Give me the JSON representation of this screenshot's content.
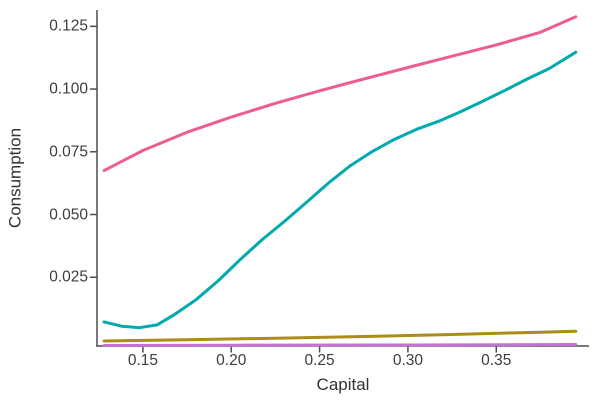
{
  "chart_data": {
    "type": "line",
    "title": "",
    "xlabel": "Capital",
    "ylabel": "Consumption",
    "xlim": [
      0.124,
      0.4025
    ],
    "ylim": [
      -0.0024,
      0.1315
    ],
    "grid": false,
    "legend": "none",
    "background": "#ffffff",
    "axis_color": "#4d4d4d",
    "text_color": "#3d3d3d",
    "xticks": [
      {
        "v": 0.15,
        "label": "0.15"
      },
      {
        "v": 0.2,
        "label": "0.20"
      },
      {
        "v": 0.25,
        "label": "0.25"
      },
      {
        "v": 0.3,
        "label": "0.30"
      },
      {
        "v": 0.35,
        "label": "0.35"
      }
    ],
    "yticks": [
      {
        "v": 0.025,
        "label": "0.025"
      },
      {
        "v": 0.05,
        "label": "0.050"
      },
      {
        "v": 0.075,
        "label": "0.075"
      },
      {
        "v": 0.1,
        "label": "0.100"
      },
      {
        "v": 0.125,
        "label": "0.125"
      }
    ],
    "series": [
      {
        "name": "purple-line",
        "color": "#C371D2",
        "x": [
          0.128,
          0.2,
          0.3,
          0.395
        ],
        "y": [
          -0.0022,
          -0.0021,
          -0.002,
          -0.0018
        ]
      },
      {
        "name": "olive-line",
        "color": "#AC8D18",
        "x": [
          0.128,
          0.175,
          0.225,
          0.275,
          0.325,
          0.375,
          0.395
        ],
        "y": [
          -0.0004,
          0.0001,
          0.0007,
          0.0014,
          0.0022,
          0.0031,
          0.0035
        ]
      },
      {
        "name": "teal-line",
        "color": "#00AAAE",
        "x": [
          0.128,
          0.138,
          0.148,
          0.158,
          0.168,
          0.18,
          0.1925,
          0.205,
          0.2175,
          0.23,
          0.2425,
          0.255,
          0.2675,
          0.28,
          0.2925,
          0.305,
          0.3175,
          0.33,
          0.3425,
          0.355,
          0.3675,
          0.38,
          0.395
        ],
        "y": [
          0.0072,
          0.0055,
          0.0049,
          0.006,
          0.0102,
          0.016,
          0.0235,
          0.032,
          0.04,
          0.0472,
          0.0548,
          0.0625,
          0.0695,
          0.0752,
          0.08,
          0.084,
          0.0872,
          0.091,
          0.0952,
          0.0995,
          0.104,
          0.1082,
          0.1147
        ]
      },
      {
        "name": "pink-line",
        "color": "#ED5D92",
        "x": [
          0.128,
          0.15,
          0.175,
          0.2,
          0.225,
          0.25,
          0.275,
          0.3,
          0.325,
          0.35,
          0.375,
          0.395
        ],
        "y": [
          0.0675,
          0.0755,
          0.0828,
          0.0888,
          0.0943,
          0.0993,
          0.104,
          0.1086,
          0.1131,
          0.1176,
          0.1226,
          0.1288
        ]
      }
    ]
  }
}
